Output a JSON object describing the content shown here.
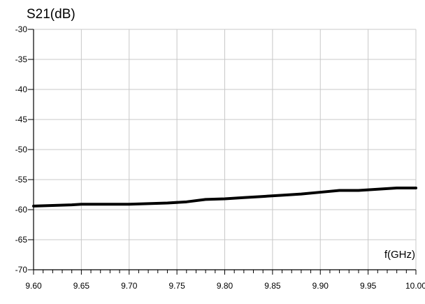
{
  "chart_data": {
    "type": "line",
    "title": "",
    "ylabel": "S21(dB)",
    "xlabel": "f(GHz)",
    "xlim": [
      9.6,
      10.0
    ],
    "ylim": [
      -70,
      -30
    ],
    "x_ticks": [
      "9.60",
      "9.65",
      "9.70",
      "9.75",
      "9.80",
      "9.85",
      "9.90",
      "9.95",
      "10.00"
    ],
    "y_ticks": [
      "-30",
      "-35",
      "-40",
      "-45",
      "-50",
      "-55",
      "-60",
      "-65",
      "-70"
    ],
    "grid": true,
    "series": [
      {
        "x": [
          9.6,
          9.62,
          9.64,
          9.65,
          9.66,
          9.68,
          9.7,
          9.72,
          9.74,
          9.76,
          9.78,
          9.8,
          9.82,
          9.84,
          9.86,
          9.88,
          9.9,
          9.92,
          9.94,
          9.96,
          9.98,
          10.0
        ],
        "y": [
          -59.4,
          -59.3,
          -59.2,
          -59.1,
          -59.1,
          -59.1,
          -59.1,
          -59.0,
          -58.9,
          -58.7,
          -58.3,
          -58.2,
          -58.0,
          -57.8,
          -57.6,
          -57.4,
          -57.1,
          -56.8,
          -56.8,
          -56.6,
          -56.4,
          -56.4
        ]
      }
    ],
    "colors": {
      "line": "#000000",
      "grid": "#c8c8c8",
      "axis": "#000000"
    }
  }
}
